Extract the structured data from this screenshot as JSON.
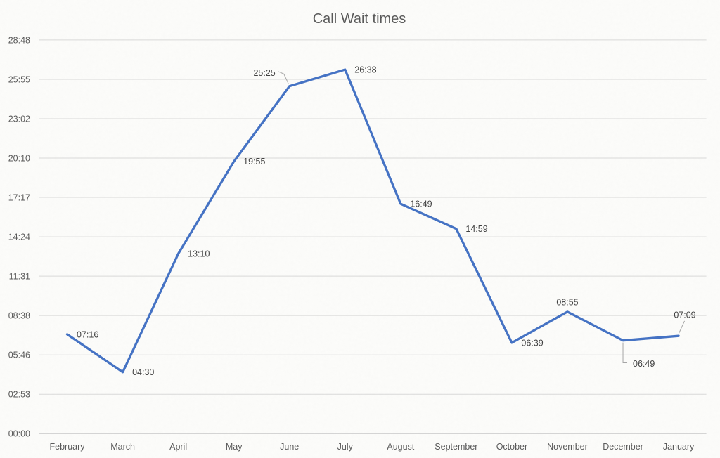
{
  "chart_data": {
    "type": "line",
    "title": "Call Wait times",
    "categories": [
      "February",
      "March",
      "April",
      "May",
      "June",
      "July",
      "August",
      "September",
      "October",
      "November",
      "December",
      "January"
    ],
    "series": [
      {
        "name": "Call Wait times",
        "labels_mmss": [
          "07:16",
          "04:30",
          "13:10",
          "19:55",
          "25:25",
          "26:38",
          "16:49",
          "14:59",
          "06:39",
          "08:55",
          "06:49",
          "07:09"
        ],
        "values_seconds": [
          436,
          270,
          790,
          1195,
          1525,
          1598,
          1009,
          899,
          399,
          535,
          409,
          429
        ]
      }
    ],
    "data_label_positions": [
      "right",
      "right",
      "right",
      "right",
      "left-leader",
      "right",
      "right",
      "right",
      "right",
      "above",
      "below-leader",
      "above-leader"
    ],
    "y_axis": {
      "tick_labels": [
        "00:00",
        "02:53",
        "05:46",
        "08:38",
        "11:31",
        "14:24",
        "17:17",
        "20:10",
        "23:02",
        "25:55",
        "28:48"
      ],
      "tick_seconds": [
        0,
        172.8,
        345.6,
        518.4,
        691.2,
        864,
        1036.8,
        1209.6,
        1382.4,
        1555.2,
        1728
      ],
      "min_seconds": 0,
      "max_seconds": 1728
    },
    "grid": true,
    "legend": false,
    "colors": {
      "line": "#4472C4",
      "gridline": "#D9D9D9",
      "axis_line": "#C8C8C8",
      "leader_line": "#A6A6A6",
      "title_text": "#595959",
      "axis_text": "#595959",
      "label_text": "#404040",
      "background": "#FCFCFA",
      "chart_border": "#D9D9D9"
    }
  }
}
